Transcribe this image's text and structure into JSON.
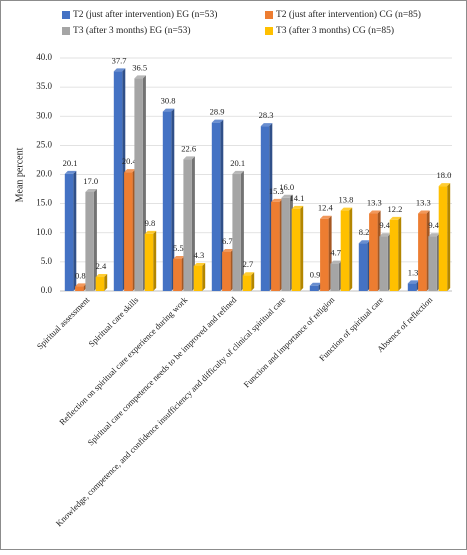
{
  "chart_data": {
    "type": "bar",
    "y_label": "Mean percent",
    "categories": [
      "Spiritual assessment",
      "Spiritual care skills",
      "Reflection on spiritual care experience during work",
      "Spiritual care competence needs to be improved and refined",
      "Knowledge, competence, and confidence insufficiency and difficulty of clinical spiritual care",
      "Function and importance of religion",
      "Function of spiritual care",
      "Absence of reflection"
    ],
    "series": [
      {
        "name": "T2 (just after intervention) EG (n=53)",
        "color": "#4472c4",
        "values": [
          20.1,
          37.7,
          30.8,
          28.9,
          28.3,
          0.9,
          8.2,
          1.3
        ],
        "value_labels": [
          "20.1",
          "37.7",
          "30.8",
          "28.9",
          "28.3",
          "0.9",
          "8.2",
          "1.3"
        ]
      },
      {
        "name": "T2 (just after intervention) CG (n=85)",
        "color": "#ed7d31",
        "values": [
          0.8,
          20.4,
          5.5,
          6.7,
          15.3,
          12.4,
          13.3,
          13.3
        ],
        "value_labels": [
          "0.8",
          "20.4",
          "5.5",
          "6.7",
          "15.3",
          "12.4",
          "13.3",
          "13.3"
        ]
      },
      {
        "name": "T3 (after 3 months) EG (n=53)",
        "color": "#a5a5a5",
        "values": [
          17.0,
          36.5,
          22.6,
          20.1,
          16.0,
          4.7,
          9.4,
          9.4
        ],
        "value_labels": [
          "17.0",
          "36.5",
          "22.6",
          "20.1",
          "16.0",
          "4.7",
          "9.4",
          "9.4"
        ]
      },
      {
        "name": "T3 (after 3 months) CG (n=85)",
        "color": "#ffc000",
        "values": [
          2.4,
          9.8,
          4.3,
          2.7,
          14.1,
          13.8,
          12.2,
          18.0
        ],
        "value_labels": [
          "2.4",
          "9.8",
          "4.3",
          "2.7",
          "14.1",
          "13.8",
          "12.2",
          "18.0"
        ]
      }
    ],
    "ylim": [
      0,
      40
    ],
    "yticks": [
      {
        "value": 0,
        "label": "0.0"
      },
      {
        "value": 5,
        "label": "5.0"
      },
      {
        "value": 10,
        "label": "10.0"
      },
      {
        "value": 15,
        "label": "15.0"
      },
      {
        "value": 20,
        "label": "20.0"
      },
      {
        "value": 25,
        "label": "25.0"
      },
      {
        "value": 30,
        "label": "30.0"
      },
      {
        "value": 35,
        "label": "35.0"
      },
      {
        "value": 40,
        "label": "40.0"
      }
    ],
    "grid": true
  }
}
